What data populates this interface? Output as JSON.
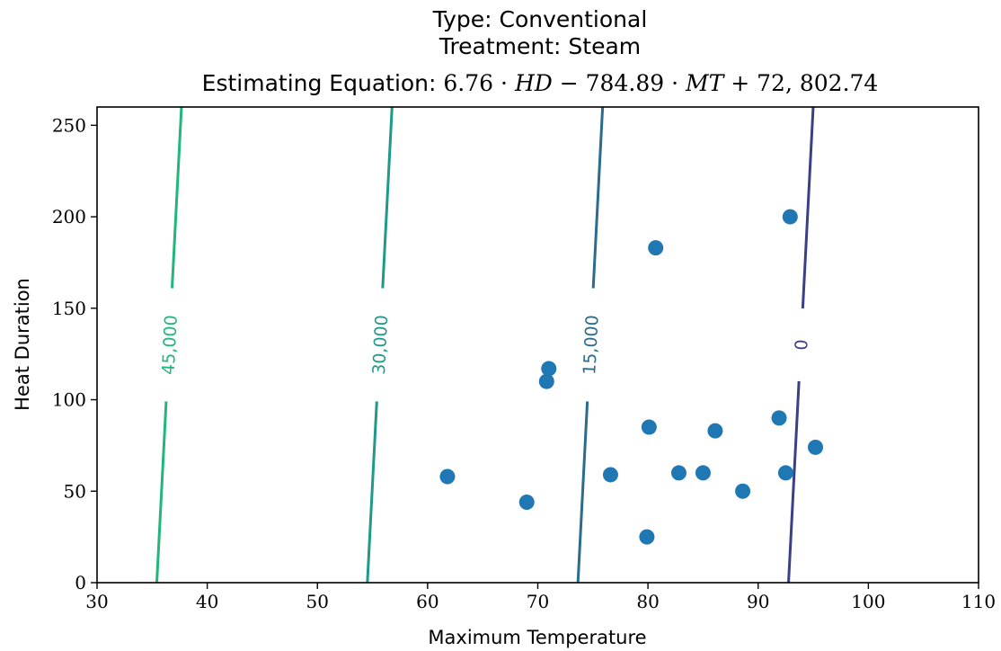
{
  "chart_data": {
    "type": "scatter",
    "title": {
      "line1": "Type: Conventional",
      "line2": "Treatment: Steam",
      "line3_prefix": "Estimating Equation: ",
      "equation": {
        "a": "6.76",
        "hd": "HD",
        "minus": "−",
        "b": "784.89",
        "mt": "MT",
        "plus": "+",
        "c": "72, 802.74",
        "dot": "·"
      }
    },
    "xlabel": "Maximum Temperature",
    "ylabel": "Heat Duration",
    "xlim": [
      30,
      110
    ],
    "ylim": [
      0,
      260
    ],
    "xticks": [
      30,
      40,
      50,
      60,
      70,
      80,
      90,
      100,
      110
    ],
    "yticks": [
      0,
      50,
      100,
      150,
      200,
      250
    ],
    "grid": false,
    "equation_coefficients": {
      "hd": 6.76,
      "mt": -784.89,
      "const": 72802.74
    },
    "contours": [
      {
        "level": 45000,
        "label": "45,000",
        "color": "#22b67a"
      },
      {
        "level": 30000,
        "label": "30,000",
        "color": "#1f9a8a"
      },
      {
        "level": 15000,
        "label": "15,000",
        "color": "#2a6b8e"
      },
      {
        "level": 0,
        "label": "0",
        "color": "#3b3f88"
      }
    ],
    "points_color": "#1f77b4",
    "points": [
      {
        "x": 61.8,
        "y": 58
      },
      {
        "x": 69.0,
        "y": 44
      },
      {
        "x": 70.8,
        "y": 110
      },
      {
        "x": 71.0,
        "y": 117
      },
      {
        "x": 76.6,
        "y": 59
      },
      {
        "x": 79.9,
        "y": 25
      },
      {
        "x": 80.1,
        "y": 85
      },
      {
        "x": 80.7,
        "y": 183
      },
      {
        "x": 82.8,
        "y": 60
      },
      {
        "x": 85.0,
        "y": 60
      },
      {
        "x": 86.1,
        "y": 83
      },
      {
        "x": 88.6,
        "y": 50
      },
      {
        "x": 91.9,
        "y": 90
      },
      {
        "x": 92.5,
        "y": 60
      },
      {
        "x": 92.9,
        "y": 200
      },
      {
        "x": 95.2,
        "y": 74
      }
    ]
  }
}
